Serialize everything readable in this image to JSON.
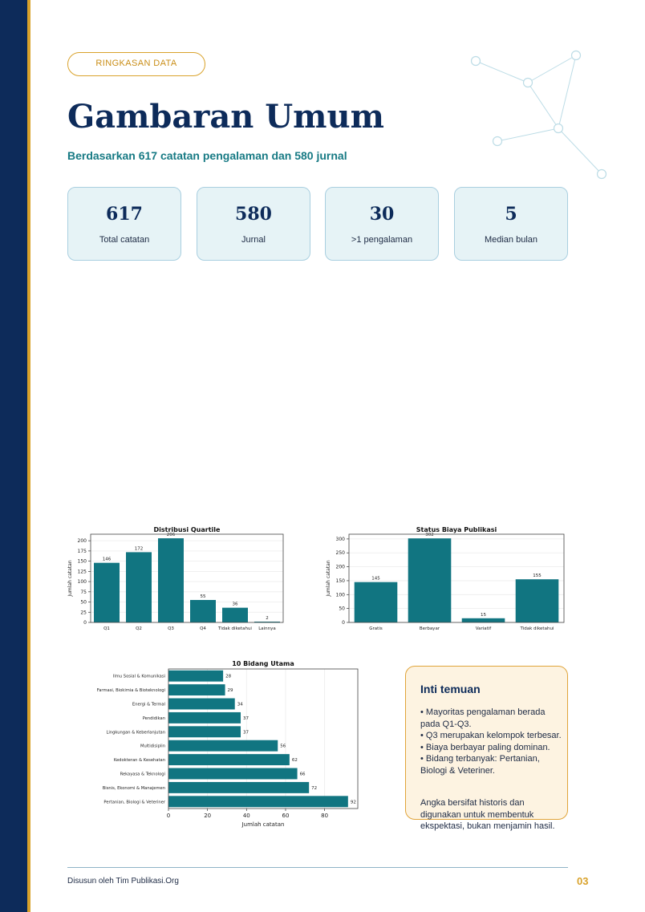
{
  "tag": "RINGKASAN DATA",
  "title": "Gambaran Umum",
  "subtitle": "Berdasarkan 617 catatan pengalaman dan 580 jurnal",
  "stats": [
    {
      "value": "617",
      "label": "Total catatan"
    },
    {
      "value": "580",
      "label": "Jurnal"
    },
    {
      "value": "30",
      "label": ">1 pengalaman"
    },
    {
      "value": "5",
      "label": "Median bulan"
    }
  ],
  "colors": {
    "navy": "#0d2b5a",
    "gold": "#d9a22b",
    "teal": "#117581",
    "card_bg": "#e6f3f6"
  },
  "chart_data": [
    {
      "type": "bar",
      "title": "Distribusi Quartile",
      "xlabel": "",
      "ylabel": "Jumlah catatan",
      "categories": [
        "Q1",
        "Q2",
        "Q3",
        "Q4",
        "Tidak diketahui",
        "Lainnya"
      ],
      "values": [
        146,
        172,
        206,
        55,
        36,
        2
      ],
      "yticks": [
        0,
        25,
        50,
        75,
        100,
        125,
        150,
        175,
        200
      ],
      "ylim": [
        0,
        216
      ]
    },
    {
      "type": "bar",
      "title": "Status Biaya Publikasi",
      "xlabel": "",
      "ylabel": "Jumlah catatan",
      "categories": [
        "Gratis",
        "Berbayar",
        "Variatif",
        "Tidak diketahui"
      ],
      "values": [
        145,
        302,
        15,
        155
      ],
      "yticks": [
        0,
        50,
        100,
        150,
        200,
        250,
        300
      ],
      "ylim": [
        0,
        317
      ]
    },
    {
      "type": "bar",
      "orientation": "horizontal",
      "title": "10 Bidang Utama",
      "xlabel": "Jumlah catatan",
      "ylabel": "",
      "categories": [
        "Ilmu Sosial & Komunikasi",
        "Farmasi, Biokimia & Bioteknologi",
        "Energi & Termal",
        "Pendidikan",
        "Lingkungan & Keberlanjutan",
        "Multidisiplin",
        "Kedokteran & Kesehatan",
        "Rekayasa & Teknologi",
        "Bisnis, Ekonomi & Manajemen",
        "Pertanian, Biologi & Veteriner"
      ],
      "values": [
        28,
        29,
        34,
        37,
        37,
        56,
        62,
        66,
        72,
        92
      ],
      "xticks": [
        0,
        20,
        40,
        60,
        80
      ],
      "xlim": [
        0,
        97
      ]
    }
  ],
  "insight": {
    "title": "Inti temuan",
    "points": [
      "• Mayoritas pengalaman berada pada Q1-Q3.",
      "• Q3 merupakan kelompok terbesar.",
      "• Biaya berbayar paling dominan.",
      "• Bidang terbanyak: Pertanian, Biologi & Veteriner."
    ],
    "note": "Angka bersifat historis dan digunakan untuk membentuk ekspektasi, bukan menjamin hasil."
  },
  "footer": {
    "credit": "Disusun oleh Tim Publikasi.Org",
    "page": "03"
  }
}
